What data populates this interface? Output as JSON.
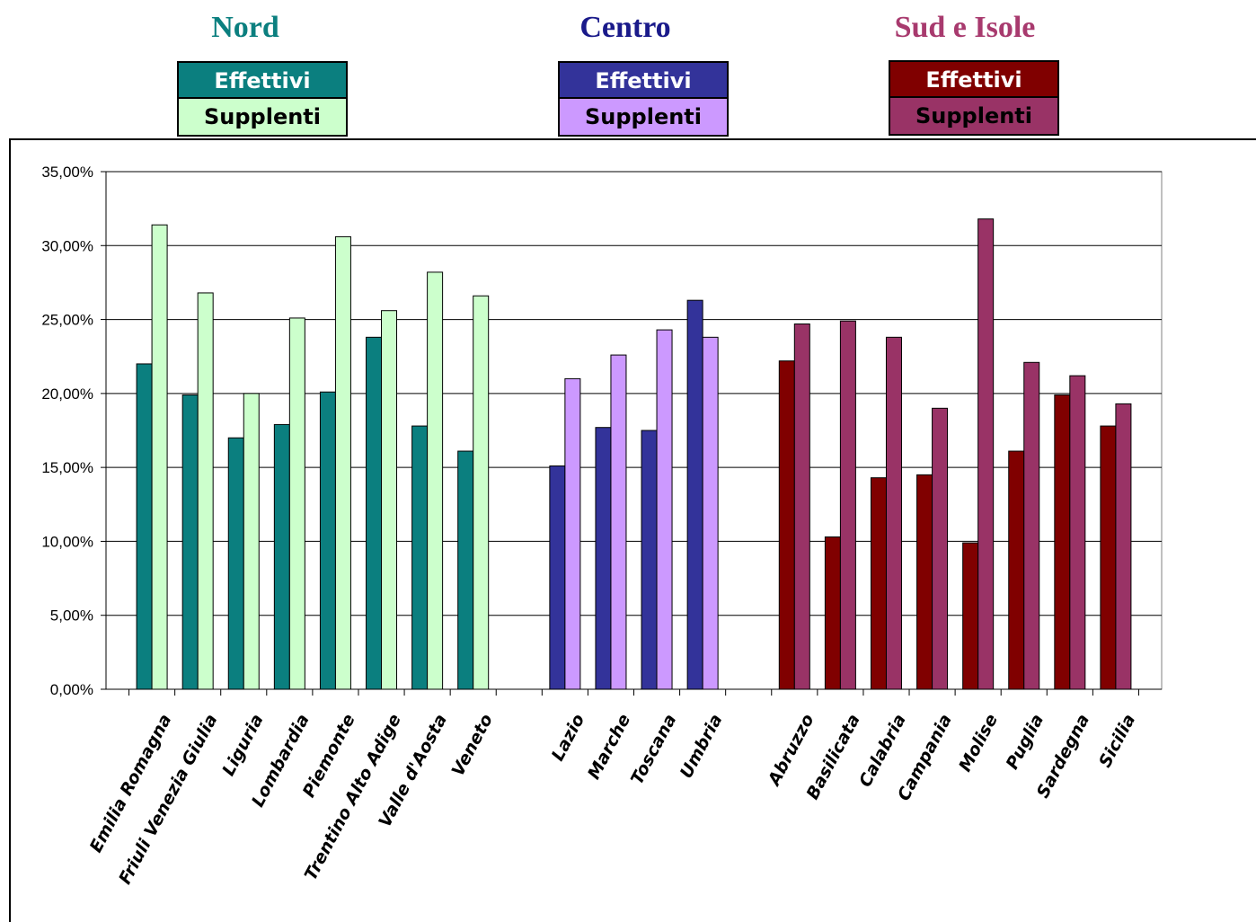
{
  "groups": [
    {
      "title": "Nord",
      "title_color": "#0b7f7f",
      "effettivi_label": "Effettivi",
      "supplenti_label": "Supplenti",
      "effettivi_color": "#0b7f7f",
      "supplenti_color": "#ccffcc"
    },
    {
      "title": "Centro",
      "title_color": "#1a1a8a",
      "effettivi_label": "Effettivi",
      "supplenti_label": "Supplenti",
      "effettivi_color": "#33339a",
      "supplenti_color": "#cc99ff"
    },
    {
      "title": "Sud e Isole",
      "title_color": "#a83a6e",
      "effettivi_label": "Effettivi",
      "supplenti_label": "Supplenti",
      "effettivi_color": "#800000",
      "supplenti_color": "#993366"
    }
  ],
  "chart_data": {
    "type": "bar",
    "title": "",
    "xlabel": "",
    "ylabel": "",
    "ylim": [
      0,
      0.35
    ],
    "y_ticks": [
      "0,00%",
      "5,00%",
      "10,00%",
      "15,00%",
      "20,00%",
      "25,00%",
      "30,00%",
      "35,00%"
    ],
    "grid": true,
    "categories": [
      "Emilia Romagna",
      "Friuli Venezia Giulia",
      "Liguria",
      "Lombardia",
      "Piemonte",
      "Trentino Alto Adige",
      "Valle d'Aosta",
      "Veneto",
      "",
      "Lazio",
      "Marche",
      "Toscana",
      "Umbria",
      "",
      "Abruzzo",
      "Basilicata",
      "Calabria",
      "Campania",
      "Molise",
      "Puglia",
      "Sardegna",
      "Sicilia"
    ],
    "category_group": [
      0,
      0,
      0,
      0,
      0,
      0,
      0,
      0,
      -1,
      1,
      1,
      1,
      1,
      -1,
      2,
      2,
      2,
      2,
      2,
      2,
      2,
      2
    ],
    "series": [
      {
        "name": "Effettivi",
        "values": [
          0.22,
          0.199,
          0.17,
          0.179,
          0.201,
          0.238,
          0.178,
          0.161,
          null,
          0.151,
          0.177,
          0.175,
          0.263,
          null,
          0.222,
          0.103,
          0.143,
          0.145,
          0.099,
          0.161,
          0.199,
          0.178
        ]
      },
      {
        "name": "Supplenti",
        "values": [
          0.314,
          0.268,
          0.2,
          0.251,
          0.306,
          0.256,
          0.282,
          0.266,
          null,
          0.21,
          0.226,
          0.243,
          0.238,
          null,
          0.247,
          0.249,
          0.238,
          0.19,
          0.318,
          0.221,
          0.212,
          0.193
        ]
      }
    ]
  }
}
